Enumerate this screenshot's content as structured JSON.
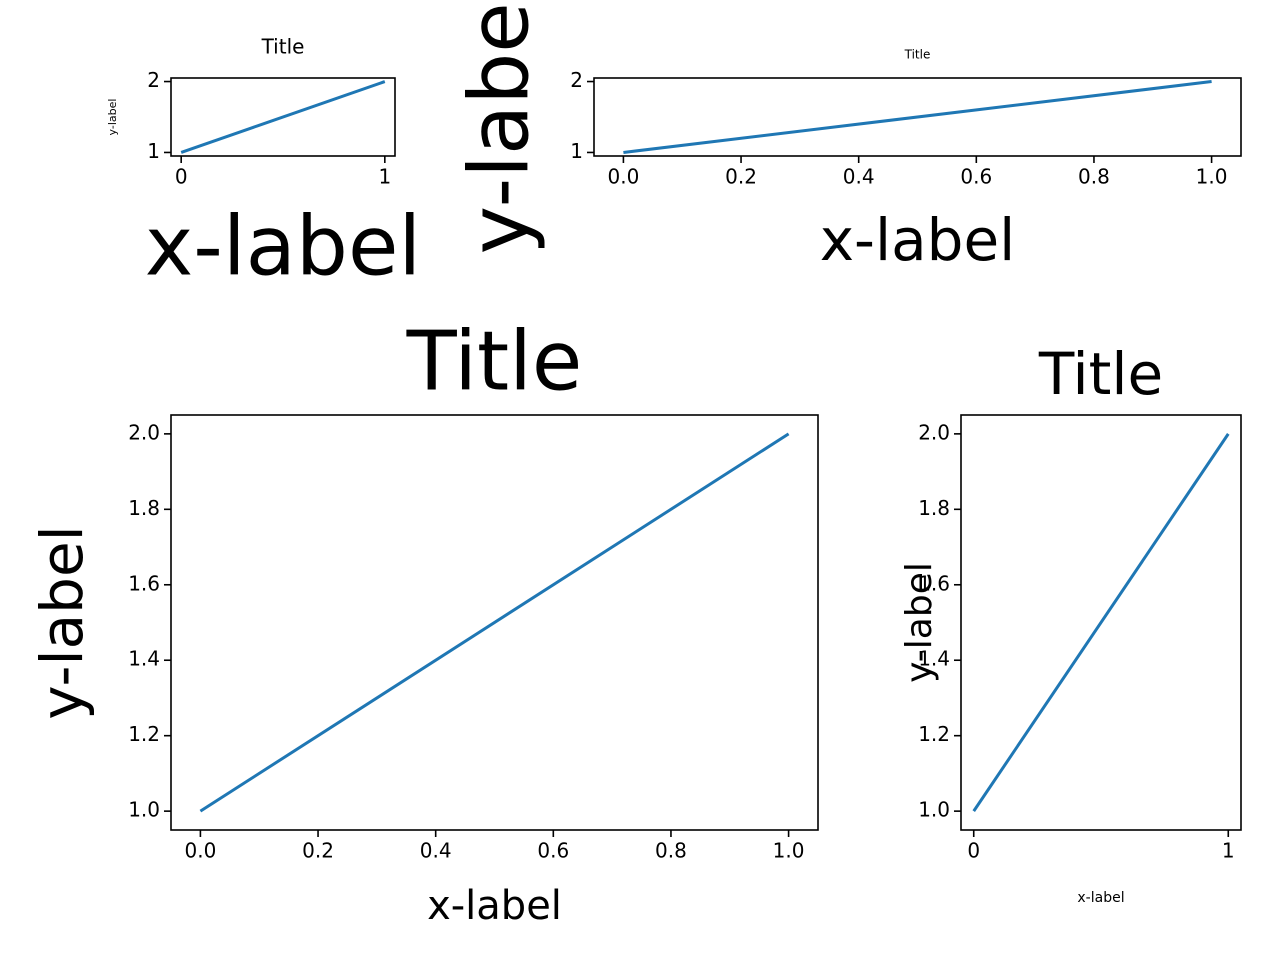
{
  "chart_data": [
    {
      "type": "line",
      "title": "Title",
      "xlabel": "x-label",
      "ylabel": "y-label",
      "x": [
        0,
        1
      ],
      "series": [
        {
          "color": "#1f77b4",
          "values": [
            1,
            2
          ]
        }
      ],
      "xlim": [
        -0.05,
        1.05
      ],
      "ylim": [
        0.95,
        2.05
      ],
      "xticks": [
        0,
        1
      ],
      "yticks": [
        1,
        2
      ]
    },
    {
      "type": "line",
      "title": "Title",
      "xlabel": "x-label",
      "ylabel": "y-label",
      "x": [
        0,
        1
      ],
      "series": [
        {
          "color": "#1f77b4",
          "values": [
            1,
            2
          ]
        }
      ],
      "xlim": [
        -0.05,
        1.05
      ],
      "ylim": [
        0.95,
        2.05
      ],
      "xticks": [
        {
          "value": 0,
          "label": "0.0"
        },
        0.2,
        0.4,
        0.6,
        0.8,
        {
          "value": 1,
          "label": "1.0"
        }
      ],
      "yticks": [
        1,
        2
      ]
    },
    {
      "type": "line",
      "title": "Title",
      "xlabel": "x-label",
      "ylabel": "y-label",
      "x": [
        0,
        1
      ],
      "series": [
        {
          "color": "#1f77b4",
          "values": [
            1,
            2
          ]
        }
      ],
      "xlim": [
        -0.05,
        1.05
      ],
      "ylim": [
        0.95,
        2.05
      ],
      "xticks": [
        {
          "value": 0,
          "label": "0.0"
        },
        0.2,
        0.4,
        0.6,
        0.8,
        {
          "value": 1,
          "label": "1.0"
        }
      ],
      "yticks": [
        {
          "value": 1,
          "label": "1.0"
        },
        1.2,
        1.4,
        1.6,
        1.8,
        {
          "value": 2,
          "label": "2.0"
        }
      ]
    },
    {
      "type": "line",
      "title": "Title",
      "xlabel": "x-label",
      "ylabel": "y-label",
      "x": [
        0,
        1
      ],
      "series": [
        {
          "color": "#1f77b4",
          "values": [
            1,
            2
          ]
        }
      ],
      "xlim": [
        -0.05,
        1.05
      ],
      "ylim": [
        0.95,
        2.05
      ],
      "xticks": [
        0,
        1
      ],
      "yticks": [
        {
          "value": 1,
          "label": "1.0"
        },
        1.2,
        1.4,
        1.6,
        1.8,
        {
          "value": 2,
          "label": "2.0"
        }
      ]
    }
  ]
}
